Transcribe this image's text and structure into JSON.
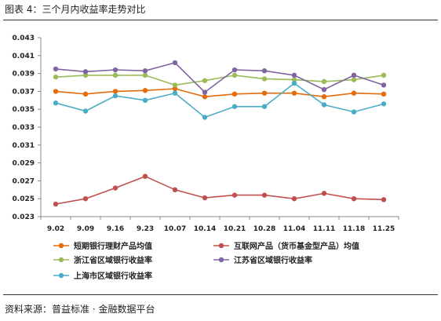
{
  "header": {
    "title": "图表 4：三个月内收益率走势对比"
  },
  "footer": {
    "source": "资料来源：普益标准 · 金融数据平台"
  },
  "chart_data": {
    "type": "line",
    "categories": [
      "9.02",
      "9.09",
      "9.16",
      "9.23",
      "10.07",
      "10.14",
      "10.21",
      "10.28",
      "11.04",
      "11.11",
      "11.18",
      "11.25"
    ],
    "ylim": [
      0.023,
      0.043
    ],
    "yticks": [
      "0.043",
      "0.041",
      "0.039",
      "0.037",
      "0.035",
      "0.033",
      "0.031",
      "0.029",
      "0.027",
      "0.025",
      "0.023"
    ],
    "grid": false,
    "legend_position": "bottom",
    "series": [
      {
        "name": "短期银行理财产品均值",
        "color": "#E46C0A",
        "values": [
          0.037,
          0.0367,
          0.037,
          0.0371,
          0.0373,
          0.0364,
          0.0367,
          0.0368,
          0.0368,
          0.0364,
          0.0368,
          0.0367
        ]
      },
      {
        "name": "互联网产品（货币基金型产品）均值",
        "color": "#C0504D",
        "values": [
          0.0244,
          0.025,
          0.0262,
          0.0275,
          0.026,
          0.0251,
          0.0254,
          0.0254,
          0.025,
          0.0256,
          0.025,
          0.0249
        ]
      },
      {
        "name": "浙江省区域银行收益率",
        "color": "#9BBB59",
        "values": [
          0.0386,
          0.0388,
          0.0388,
          0.0388,
          0.0377,
          0.0382,
          0.0388,
          0.0384,
          0.0383,
          0.0381,
          0.0383,
          0.0388
        ]
      },
      {
        "name": "江苏省区域银行收益率",
        "color": "#8064A2",
        "values": [
          0.0395,
          0.0392,
          0.0394,
          0.0393,
          0.0402,
          0.0369,
          0.0394,
          0.0393,
          0.0388,
          0.0372,
          0.0388,
          0.0377
        ]
      },
      {
        "name": "上海市区域银行收益率",
        "color": "#4BACC6",
        "values": [
          0.0357,
          0.0348,
          0.0365,
          0.036,
          0.0368,
          0.0341,
          0.0353,
          0.0353,
          0.0379,
          0.0355,
          0.0347,
          0.0356
        ]
      }
    ]
  }
}
